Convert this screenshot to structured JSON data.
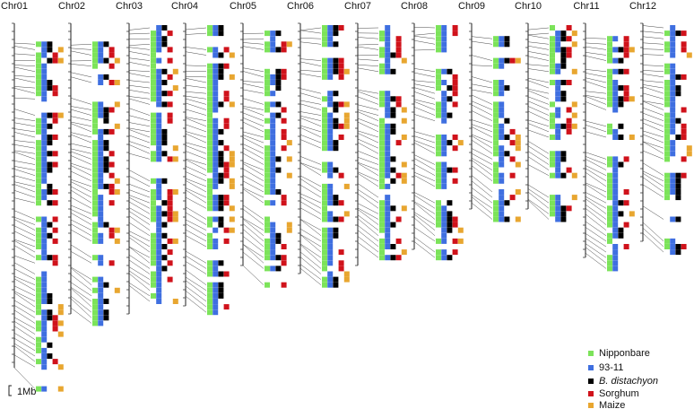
{
  "chromosomes": [
    {
      "label": "Chr01",
      "length_mb": 43
    },
    {
      "label": "Chr02",
      "length_mb": 36
    },
    {
      "label": "Chr03",
      "length_mb": 36
    },
    {
      "label": "Chr04",
      "length_mb": 35
    },
    {
      "label": "Chr05",
      "length_mb": 30
    },
    {
      "label": "Chr06",
      "length_mb": 31
    },
    {
      "label": "Chr07",
      "length_mb": 30
    },
    {
      "label": "Chr08",
      "length_mb": 28
    },
    {
      "label": "Chr09",
      "length_mb": 23
    },
    {
      "label": "Chr10",
      "length_mb": 23
    },
    {
      "label": "Chr11",
      "length_mb": 29
    },
    {
      "label": "Chr12",
      "length_mb": 27
    }
  ],
  "legend": [
    {
      "key": "nip",
      "label": "Nipponbare",
      "color": "#7ce35a",
      "italic": false
    },
    {
      "key": "i93",
      "label": "93-11",
      "color": "#3f6fe0",
      "italic": false
    },
    {
      "key": "bd",
      "label": "B. distachyon",
      "color": "#000000",
      "italic": true
    },
    {
      "key": "sb",
      "label": "Sorghum",
      "color": "#d0121b",
      "italic": false
    },
    {
      "key": "zm",
      "label": "Maize",
      "color": "#e8a630",
      "italic": false
    }
  ],
  "scale_bar": {
    "label": "1Mb"
  }
}
